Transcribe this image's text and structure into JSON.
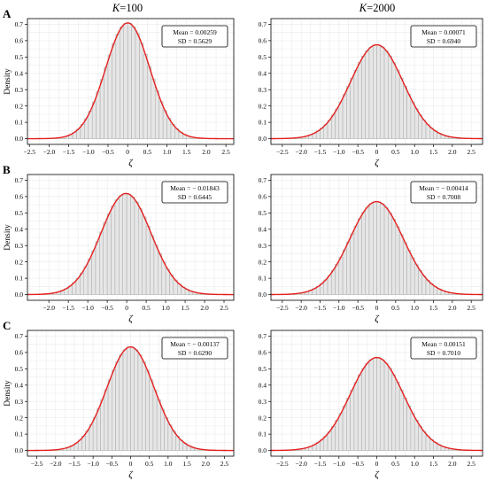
{
  "figure": {
    "column_titles": [
      {
        "var": "K",
        "rest": "=100"
      },
      {
        "var": "K",
        "rest": "=2000"
      }
    ],
    "row_labels": [
      "A",
      "B",
      "C"
    ]
  },
  "colors": {
    "bar_fill": "#e6e6e6",
    "bar_stroke": "#a9a9a9",
    "curve": "#e4201f",
    "grid": "#ebebeb",
    "axis": "#000000"
  },
  "chart_data": [
    {
      "type": "histogram",
      "row": "A",
      "column": "K=100",
      "xlabel": "ζ",
      "ylabel": "Density",
      "xlim": [
        -2.55,
        2.7
      ],
      "ylim": [
        -0.035,
        0.735
      ],
      "xticks": [
        -2.5,
        -2.0,
        -1.5,
        -1.0,
        -0.5,
        0,
        0.5,
        1.0,
        1.5,
        2.0,
        2.5
      ],
      "yticks": [
        0.0,
        0.1,
        0.2,
        0.3,
        0.4,
        0.5,
        0.6,
        0.7
      ],
      "bin_range": [
        -2.1,
        2.6
      ],
      "bin_width": 0.1,
      "mean": 0.00259,
      "sd": 0.5629,
      "stats_text": {
        "mean": "Mean = 0.00259",
        "sd": "SD = 0.5629"
      }
    },
    {
      "type": "histogram",
      "row": "A",
      "column": "K=2000",
      "xlabel": "ζ",
      "ylabel": "",
      "xlim": [
        -2.8,
        2.8
      ],
      "ylim": [
        -0.035,
        0.735
      ],
      "xticks": [
        -2.5,
        -2.0,
        -1.5,
        -1.0,
        -0.5,
        0,
        0.5,
        1.0,
        1.5,
        2.0,
        2.5
      ],
      "yticks": [
        0.0,
        0.1,
        0.2,
        0.3,
        0.4,
        0.5,
        0.6,
        0.7
      ],
      "bin_range": [
        -2.8,
        2.8
      ],
      "bin_width": 0.1,
      "mean": 0.00071,
      "sd": 0.694,
      "stats_text": {
        "mean": "Mean = 0.00071",
        "sd": "SD = 0.6940"
      }
    },
    {
      "type": "histogram",
      "row": "B",
      "column": "K=100",
      "xlabel": "ζ",
      "ylabel": "Density",
      "xlim": [
        -2.55,
        2.75
      ],
      "ylim": [
        -0.035,
        0.735
      ],
      "xticks": [
        -2.0,
        -1.5,
        -1.0,
        -0.5,
        0,
        0.5,
        1.0,
        1.5,
        2.0,
        2.5
      ],
      "yticks": [
        0.0,
        0.1,
        0.2,
        0.3,
        0.4,
        0.5,
        0.6,
        0.7
      ],
      "bin_range": [
        -2.2,
        2.6
      ],
      "bin_width": 0.1,
      "mean": -0.01843,
      "sd": 0.6445,
      "stats_text": {
        "mean": "Mean = − 0.01843",
        "sd": "SD = 0.6445"
      }
    },
    {
      "type": "histogram",
      "row": "B",
      "column": "K=2000",
      "xlabel": "ζ",
      "ylabel": "",
      "xlim": [
        -2.8,
        2.8
      ],
      "ylim": [
        -0.035,
        0.735
      ],
      "xticks": [
        -2.5,
        -2.0,
        -1.5,
        -1.0,
        -0.5,
        0,
        0.5,
        1.0,
        1.5,
        2.0,
        2.5
      ],
      "yticks": [
        0.0,
        0.1,
        0.2,
        0.3,
        0.4,
        0.5,
        0.6,
        0.7
      ],
      "bin_range": [
        -2.8,
        2.8
      ],
      "bin_width": 0.1,
      "mean": -0.00414,
      "sd": 0.7008,
      "stats_text": {
        "mean": "Mean = − 0.00414",
        "sd": "SD = 0.7008"
      }
    },
    {
      "type": "histogram",
      "row": "C",
      "column": "K=100",
      "xlabel": "ζ",
      "ylabel": "Density",
      "xlim": [
        -2.75,
        2.75
      ],
      "ylim": [
        -0.035,
        0.735
      ],
      "xticks": [
        -2.5,
        -2.0,
        -1.5,
        -1.0,
        -0.5,
        0,
        0.5,
        1.0,
        1.5,
        2.0,
        2.5
      ],
      "yticks": [
        0.0,
        0.1,
        0.2,
        0.3,
        0.4,
        0.5,
        0.6,
        0.7
      ],
      "bin_range": [
        -2.5,
        2.6
      ],
      "bin_width": 0.1,
      "mean": -0.00137,
      "sd": 0.629,
      "stats_text": {
        "mean": "Mean = − 0.00137",
        "sd": "SD = 0.6290"
      }
    },
    {
      "type": "histogram",
      "row": "C",
      "column": "K=2000",
      "xlabel": "ζ",
      "ylabel": "",
      "xlim": [
        -2.8,
        2.8
      ],
      "ylim": [
        -0.035,
        0.735
      ],
      "xticks": [
        -2.5,
        -2.0,
        -1.5,
        -1.0,
        -0.5,
        0,
        0.5,
        1.0,
        1.5,
        2.0,
        2.5
      ],
      "yticks": [
        0.0,
        0.1,
        0.2,
        0.3,
        0.4,
        0.5,
        0.6,
        0.7
      ],
      "bin_range": [
        -2.8,
        2.8
      ],
      "bin_width": 0.1,
      "mean": 0.00151,
      "sd": 0.701,
      "stats_text": {
        "mean": "Mean = 0.00151",
        "sd": "SD = 0.7010"
      }
    }
  ]
}
